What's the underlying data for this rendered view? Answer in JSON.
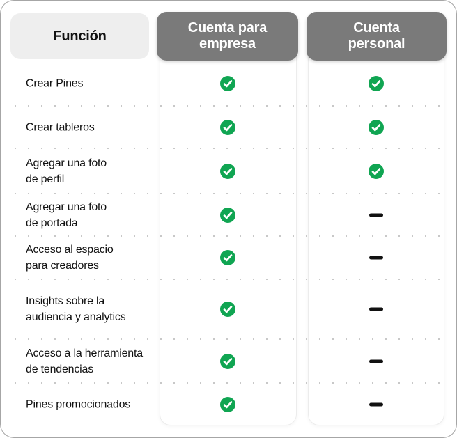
{
  "colors": {
    "check_green": "#10A552",
    "header_dark_gray": "#7A7A7A",
    "header_light_gray": "#EEEEEE",
    "dash_black": "#111111",
    "dot_gray": "#C8C8C8",
    "card_border": "#ECECEC",
    "page_background": "#FFFFFF"
  },
  "table": {
    "feature_header": "Función",
    "columns": [
      {
        "id": "business",
        "label": "Cuenta para empresa",
        "label_lines": [
          "Cuenta para",
          "empresa"
        ]
      },
      {
        "id": "personal",
        "label": "Cuenta personal",
        "label_lines": [
          "Cuenta",
          "personal"
        ]
      }
    ],
    "icons": {
      "check": "check-circle-icon",
      "dash": "dash-icon"
    },
    "rows": [
      {
        "feature": "Crear Pines",
        "lines": [
          "Crear Pines"
        ],
        "business": "check",
        "personal": "check"
      },
      {
        "feature": "Crear tableros",
        "lines": [
          "Crear tableros"
        ],
        "business": "check",
        "personal": "check"
      },
      {
        "feature": "Agregar una foto de perfil",
        "lines": [
          "Agregar una foto",
          "de perfil"
        ],
        "business": "check",
        "personal": "check"
      },
      {
        "feature": "Agregar una foto de portada",
        "lines": [
          "Agregar una foto",
          "de portada"
        ],
        "business": "check",
        "personal": "dash"
      },
      {
        "feature": "Acceso al espacio para creadores",
        "lines": [
          "Acceso al espacio",
          "para creadores"
        ],
        "business": "check",
        "personal": "dash"
      },
      {
        "feature": "Insights sobre la audiencia y analytics",
        "lines": [
          "Insights sobre la",
          "audiencia y analytics"
        ],
        "business": "check",
        "personal": "dash"
      },
      {
        "feature": "Acceso a la herramienta de tendencias",
        "lines": [
          "Acceso a la herramienta",
          "de tendencias"
        ],
        "business": "check",
        "personal": "dash"
      },
      {
        "feature": "Pines promocionados",
        "lines": [
          "Pines promocionados"
        ],
        "business": "check",
        "personal": "dash"
      }
    ]
  }
}
